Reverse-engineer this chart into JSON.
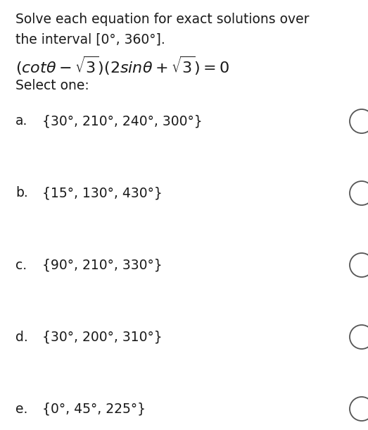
{
  "background_color": "#ffffff",
  "instructions_line1": "Solve each equation for exact solutions over",
  "instructions_line2": "the interval [0°, 360°].",
  "select_one": "Select one:",
  "options": [
    {
      "label": "a.",
      "text": "{30°, 210°, 240°, 300°}"
    },
    {
      "label": "b.",
      "text": "{15°, 130°, 430°}"
    },
    {
      "label": "c.",
      "text": "{90°, 210°, 330°}"
    },
    {
      "label": "d.",
      "text": "{30°, 200°, 310°}"
    },
    {
      "label": "e.",
      "text": "{0°, 45°, 225°}"
    }
  ],
  "text_color": "#1a1a1a",
  "font_size_body": 13.5,
  "font_size_equation": 16,
  "fig_width": 5.23,
  "fig_height": 6.1,
  "dpi": 100
}
